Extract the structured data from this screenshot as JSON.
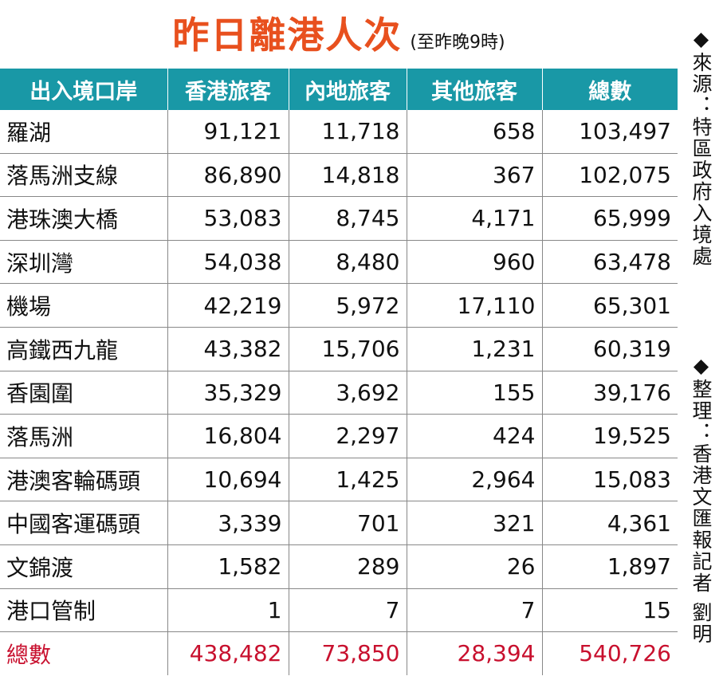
{
  "header": {
    "title": "昨日離港人次",
    "subtitle": "(至昨晚9時)"
  },
  "table": {
    "columns": [
      "出入境口岸",
      "香港旅客",
      "內地旅客",
      "其他旅客",
      "總數"
    ],
    "rows": [
      [
        "羅湖",
        "91,121",
        "11,718",
        "658",
        "103,497"
      ],
      [
        "落馬洲支線",
        "86,890",
        "14,818",
        "367",
        "102,075"
      ],
      [
        "港珠澳大橋",
        "53,083",
        "8,745",
        "4,171",
        "65,999"
      ],
      [
        "深圳灣",
        "54,038",
        "8,480",
        "960",
        "63,478"
      ],
      [
        "機場",
        "42,219",
        "5,972",
        "17,110",
        "65,301"
      ],
      [
        "高鐵西九龍",
        "43,382",
        "15,706",
        "1,231",
        "60,319"
      ],
      [
        "香園圍",
        "35,329",
        "3,692",
        "155",
        "39,176"
      ],
      [
        "落馬洲",
        "16,804",
        "2,297",
        "424",
        "19,525"
      ],
      [
        "港澳客輪碼頭",
        "10,694",
        "1,425",
        "2,964",
        "15,083"
      ],
      [
        "中國客運碼頭",
        "3,339",
        "701",
        "321",
        "4,361"
      ],
      [
        "文錦渡",
        "1,582",
        "289",
        "26",
        "1,897"
      ],
      [
        "港口管制",
        "1",
        "7",
        "7",
        "15"
      ]
    ],
    "total": [
      "總數",
      "438,482",
      "73,850",
      "28,394",
      "540,726"
    ]
  },
  "notes": {
    "source": "來源：特區政府入境處",
    "compiled": "整理：香港文匯報記者 劉明"
  }
}
